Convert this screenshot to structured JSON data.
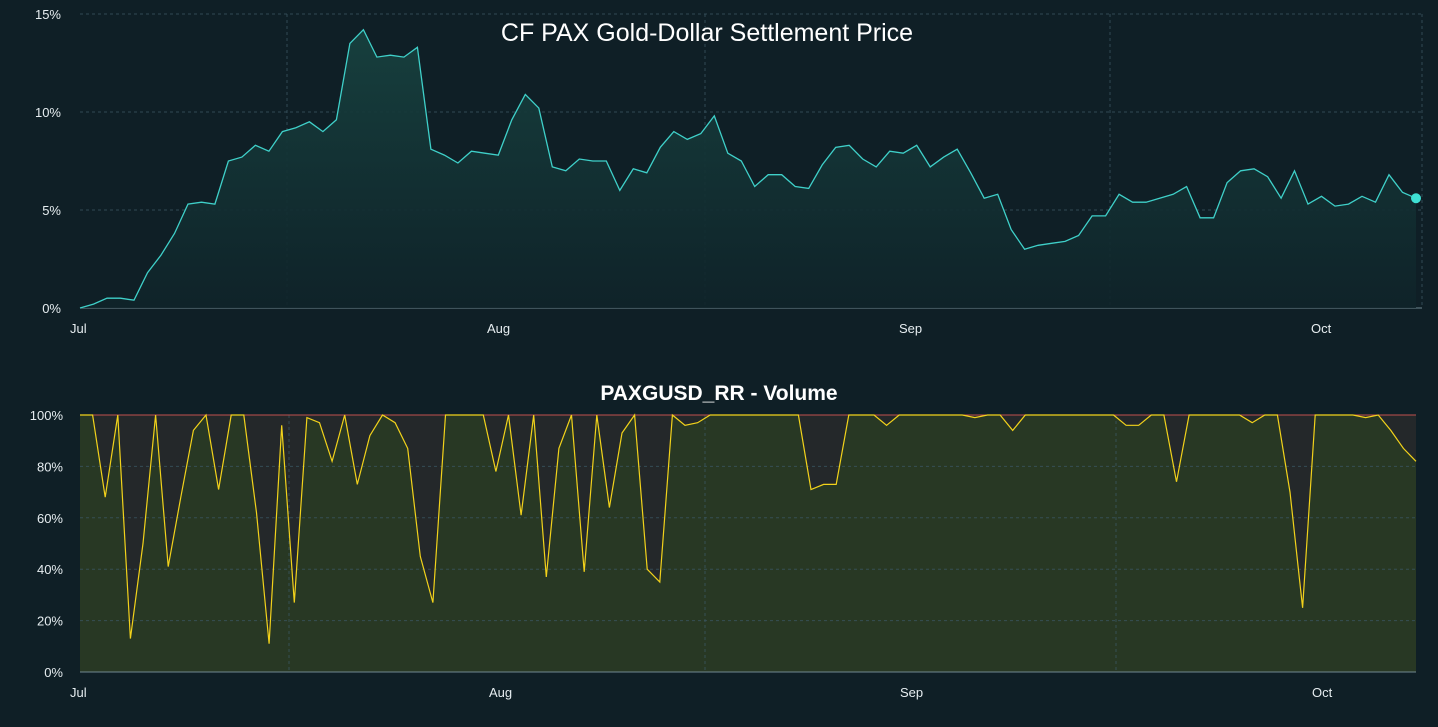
{
  "chart_data": [
    {
      "type": "area",
      "title": "CF PAX Gold-Dollar Settlement Price",
      "xlabel": "",
      "ylabel": "",
      "x_ticks": [
        "Jul",
        "Aug",
        "Sep",
        "Oct"
      ],
      "y_ticks": [
        "0%",
        "5%",
        "10%",
        "15%"
      ],
      "ylim": [
        0,
        15
      ],
      "x_days": 102,
      "grid": true,
      "colors": {
        "line": "#3fd0c9",
        "fill_top": "#17413f",
        "fill_bottom": "#0f2329"
      },
      "series": [
        {
          "values": [
            0.0,
            0.2,
            0.5,
            0.5,
            0.4,
            1.8,
            2.7,
            3.8,
            5.3,
            5.4,
            5.3,
            7.5,
            7.7,
            8.3,
            8.0,
            9.0,
            9.2,
            9.5,
            9.0,
            9.6,
            13.5,
            14.2,
            12.8,
            12.9,
            12.8,
            13.3,
            8.1,
            7.8,
            7.4,
            8.0,
            7.9,
            7.8,
            9.6,
            10.9,
            10.2,
            7.2,
            7.0,
            7.6,
            7.5,
            7.5,
            6.0,
            7.1,
            6.9,
            8.2,
            9.0,
            8.6,
            8.9,
            9.8,
            7.9,
            7.5,
            6.2,
            6.8,
            6.8,
            6.2,
            6.1,
            7.3,
            8.2,
            8.3,
            7.6,
            7.2,
            8.0,
            7.9,
            8.3,
            7.2,
            7.7,
            8.1,
            6.9,
            5.6,
            5.8,
            4.0,
            3.0,
            3.2,
            3.3,
            3.4,
            3.7,
            4.7,
            4.7,
            5.8,
            5.4,
            5.4,
            5.6,
            5.8,
            6.2,
            4.6,
            4.6,
            6.4,
            7.0,
            7.1,
            6.7,
            5.6,
            7.0,
            5.3,
            5.7,
            5.2,
            5.3,
            5.7,
            5.4,
            6.8,
            5.9,
            5.6
          ]
        }
      ]
    },
    {
      "type": "area",
      "title": "PAXGUSD_RR - Volume",
      "xlabel": "",
      "ylabel": "",
      "x_ticks": [
        "Jul",
        "Aug",
        "Sep",
        "Oct"
      ],
      "y_ticks": [
        "0%",
        "20%",
        "40%",
        "60%",
        "80%",
        "100%"
      ],
      "ylim": [
        0,
        100
      ],
      "x_days": 102,
      "grid": true,
      "colors": {
        "line": "#f2d21b",
        "fill_below": "#283824",
        "fill_above": "#24282a",
        "top_line": "#c0504d"
      },
      "series": [
        {
          "values": [
            100,
            100,
            68,
            100,
            13,
            50,
            100,
            41,
            68,
            94,
            100,
            71,
            100,
            100,
            62,
            11,
            96,
            27,
            99,
            97,
            82,
            100,
            73,
            92,
            100,
            97,
            87,
            45,
            27,
            100,
            100,
            100,
            100,
            78,
            100,
            61,
            100,
            37,
            87,
            100,
            39,
            100,
            64,
            93,
            100,
            40,
            35,
            100,
            96,
            97,
            100,
            100,
            100,
            100,
            100,
            100,
            100,
            100,
            71,
            73,
            73,
            100,
            100,
            100,
            96,
            100,
            100,
            100,
            100,
            100,
            100,
            99,
            100,
            100,
            94,
            100,
            100,
            100,
            100,
            100,
            100,
            100,
            100,
            96,
            96,
            100,
            100,
            74,
            100,
            100,
            100,
            100,
            100,
            97,
            100,
            100,
            70,
            25,
            100,
            100,
            100,
            100,
            99,
            100,
            94,
            87,
            82
          ]
        }
      ]
    }
  ]
}
